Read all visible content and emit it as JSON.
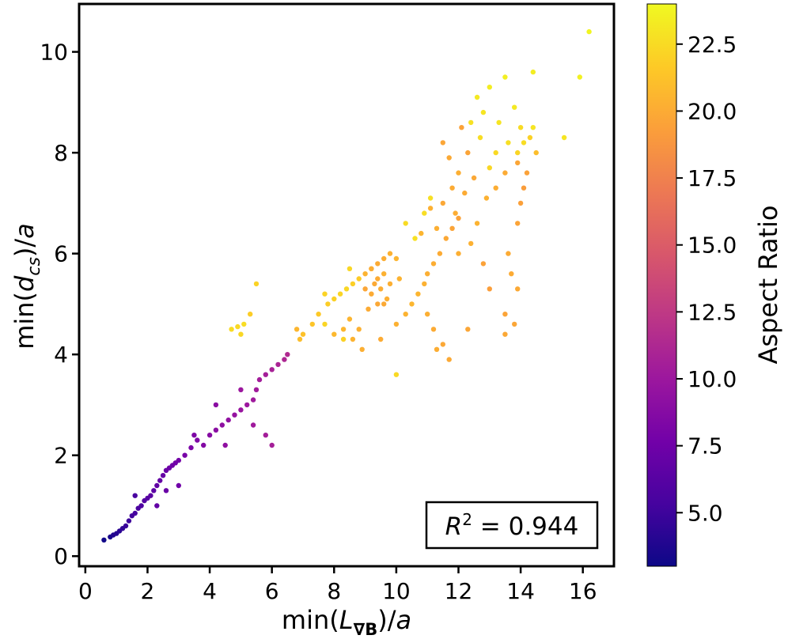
{
  "chart_data": {
    "type": "scatter",
    "title": "",
    "xlabel": "min(L_∇B)/a",
    "ylabel": "min(d_cs)/a",
    "xlabel_parts": {
      "pre": "min(",
      "var": "L",
      "sub": "∇B",
      "post": ")/",
      "tail": "a"
    },
    "ylabel_parts": {
      "pre": "min(",
      "var": "d",
      "sub": "cs",
      "post": ")/",
      "tail": "a"
    },
    "xlim": [
      -0.2,
      17.0
    ],
    "ylim": [
      -0.2,
      10.95
    ],
    "xticks": [
      0,
      2,
      4,
      6,
      8,
      10,
      12,
      14,
      16
    ],
    "yticks": [
      0,
      2,
      4,
      6,
      8,
      10
    ],
    "grid": false,
    "annotation": {
      "var": "R",
      "sup": "2",
      "text": " = 0.944",
      "location": "bottom-right"
    },
    "colorbar": {
      "label": "Aspect Ratio",
      "range": [
        3.0,
        24.0
      ],
      "ticks": [
        "5.0",
        "7.5",
        "10.0",
        "12.5",
        "15.0",
        "17.5",
        "20.0",
        "22.5"
      ],
      "colormap": [
        "#0d0887",
        "#46039f",
        "#7201a8",
        "#9c179e",
        "#bd3786",
        "#d8576b",
        "#ed7953",
        "#fb9f3a",
        "#fdca26",
        "#f0f921"
      ]
    },
    "points": [
      [
        0.6,
        0.32,
        3.2
      ],
      [
        0.8,
        0.38,
        3.5
      ],
      [
        0.9,
        0.42,
        3.8
      ],
      [
        1.0,
        0.45,
        4.0
      ],
      [
        1.1,
        0.5,
        4.2
      ],
      [
        1.2,
        0.55,
        4.5
      ],
      [
        1.3,
        0.6,
        4.8
      ],
      [
        1.4,
        0.7,
        5.0
      ],
      [
        1.5,
        0.8,
        5.2
      ],
      [
        1.6,
        0.85,
        5.4
      ],
      [
        1.7,
        0.95,
        5.6
      ],
      [
        1.8,
        1.0,
        5.8
      ],
      [
        1.9,
        1.1,
        6.0
      ],
      [
        2.0,
        1.15,
        6.2
      ],
      [
        2.1,
        1.2,
        6.4
      ],
      [
        2.2,
        1.3,
        6.5
      ],
      [
        2.3,
        1.4,
        6.7
      ],
      [
        2.4,
        1.5,
        6.9
      ],
      [
        2.5,
        1.6,
        7.0
      ],
      [
        2.6,
        1.7,
        7.2
      ],
      [
        2.7,
        1.75,
        7.4
      ],
      [
        2.8,
        1.8,
        7.5
      ],
      [
        2.9,
        1.85,
        7.6
      ],
      [
        3.0,
        1.9,
        7.8
      ],
      [
        3.2,
        2.0,
        8.0
      ],
      [
        3.4,
        2.15,
        8.2
      ],
      [
        3.6,
        2.3,
        8.4
      ],
      [
        3.5,
        2.4,
        8.3
      ],
      [
        3.8,
        2.2,
        8.6
      ],
      [
        4.0,
        2.4,
        8.8
      ],
      [
        4.2,
        2.5,
        9.0
      ],
      [
        4.4,
        2.6,
        9.2
      ],
      [
        4.6,
        2.7,
        9.4
      ],
      [
        4.8,
        2.8,
        9.6
      ],
      [
        5.0,
        2.9,
        9.8
      ],
      [
        5.2,
        3.0,
        10.0
      ],
      [
        5.4,
        3.1,
        10.2
      ],
      [
        5.5,
        3.3,
        10.3
      ],
      [
        5.6,
        3.5,
        10.4
      ],
      [
        5.8,
        3.6,
        10.6
      ],
      [
        6.0,
        3.7,
        10.8
      ],
      [
        6.2,
        3.8,
        11.0
      ],
      [
        6.4,
        3.9,
        11.2
      ],
      [
        6.5,
        4.0,
        11.4
      ],
      [
        5.0,
        3.3,
        10.0
      ],
      [
        4.5,
        2.2,
        9.3
      ],
      [
        4.2,
        3.0,
        9.0
      ],
      [
        5.8,
        2.4,
        10.5
      ],
      [
        6.0,
        2.2,
        10.6
      ],
      [
        5.4,
        2.6,
        10.2
      ],
      [
        3.0,
        1.4,
        7.6
      ],
      [
        2.6,
        1.3,
        7.2
      ],
      [
        2.3,
        1.0,
        6.8
      ],
      [
        1.6,
        1.2,
        5.5
      ],
      [
        4.7,
        4.5,
        22.5
      ],
      [
        4.9,
        4.55,
        22.4
      ],
      [
        5.1,
        4.6,
        22.6
      ],
      [
        5.0,
        4.4,
        22.3
      ],
      [
        5.3,
        4.8,
        21.8
      ],
      [
        5.5,
        5.4,
        22.1
      ],
      [
        6.9,
        4.3,
        21.0
      ],
      [
        6.8,
        4.5,
        20.6
      ],
      [
        7.0,
        4.4,
        21.2
      ],
      [
        7.3,
        4.6,
        21.4
      ],
      [
        7.5,
        4.8,
        21.6
      ],
      [
        7.8,
        5.0,
        21.8
      ],
      [
        8.0,
        5.1,
        22.0
      ],
      [
        8.2,
        5.2,
        22.2
      ],
      [
        8.4,
        5.3,
        22.3
      ],
      [
        8.6,
        5.4,
        21.9
      ],
      [
        8.8,
        5.5,
        21.7
      ],
      [
        9.0,
        5.6,
        20.4
      ],
      [
        9.2,
        5.7,
        20.2
      ],
      [
        9.4,
        5.8,
        20.0
      ],
      [
        9.6,
        5.9,
        20.1
      ],
      [
        9.8,
        6.0,
        20.3
      ],
      [
        10.0,
        5.9,
        20.5
      ],
      [
        9.2,
        5.2,
        20.0
      ],
      [
        9.3,
        5.4,
        19.9
      ],
      [
        9.5,
        5.3,
        20.1
      ],
      [
        9.7,
        5.1,
        20.2
      ],
      [
        9.4,
        5.0,
        19.8
      ],
      [
        9.1,
        4.9,
        20.0
      ],
      [
        9.6,
        5.6,
        20.3
      ],
      [
        9.0,
        5.3,
        19.7
      ],
      [
        9.8,
        5.4,
        20.2
      ],
      [
        10.1,
        5.5,
        20.4
      ],
      [
        9.4,
        5.5,
        20.0
      ],
      [
        9.2,
        5.7,
        20.1
      ],
      [
        9.6,
        5.0,
        19.9
      ],
      [
        8.8,
        4.5,
        20.3
      ],
      [
        8.5,
        4.7,
        20.5
      ],
      [
        8.3,
        4.5,
        20.6
      ],
      [
        8.0,
        4.4,
        20.7
      ],
      [
        8.6,
        4.3,
        20.4
      ],
      [
        8.9,
        4.1,
        20.2
      ],
      [
        9.5,
        4.3,
        20.0
      ],
      [
        10.0,
        4.6,
        20.3
      ],
      [
        10.3,
        4.8,
        20.4
      ],
      [
        10.5,
        5.0,
        20.6
      ],
      [
        10.7,
        5.2,
        20.5
      ],
      [
        10.9,
        5.4,
        20.3
      ],
      [
        11.0,
        5.6,
        20.2
      ],
      [
        11.2,
        5.8,
        20.1
      ],
      [
        11.4,
        6.0,
        20.0
      ],
      [
        11.6,
        6.3,
        19.8
      ],
      [
        11.8,
        6.5,
        19.6
      ],
      [
        12.0,
        6.7,
        19.5
      ],
      [
        11.5,
        7.0,
        19.8
      ],
      [
        11.8,
        7.3,
        20.0
      ],
      [
        12.0,
        7.6,
        20.2
      ],
      [
        11.7,
        7.9,
        19.9
      ],
      [
        11.5,
        8.2,
        19.7
      ],
      [
        12.1,
        8.5,
        19.5
      ],
      [
        12.3,
        8.0,
        19.6
      ],
      [
        12.5,
        7.5,
        19.8
      ],
      [
        12.2,
        7.2,
        20.0
      ],
      [
        11.9,
        6.8,
        20.1
      ],
      [
        11.3,
        6.5,
        20.2
      ],
      [
        11.1,
        6.9,
        20.3
      ],
      [
        10.8,
        6.4,
        20.5
      ],
      [
        11.0,
        4.8,
        20.2
      ],
      [
        11.2,
        4.5,
        20.0
      ],
      [
        11.5,
        4.2,
        19.8
      ],
      [
        11.7,
        3.9,
        19.9
      ],
      [
        11.3,
        4.1,
        20.1
      ],
      [
        12.3,
        4.5,
        19.7
      ],
      [
        12.8,
        5.8,
        19.5
      ],
      [
        13.0,
        5.3,
        19.3
      ],
      [
        13.5,
        4.8,
        19.6
      ],
      [
        13.8,
        4.6,
        19.7
      ],
      [
        13.5,
        4.4,
        19.8
      ],
      [
        13.9,
        5.3,
        19.9
      ],
      [
        13.7,
        5.6,
        20.0
      ],
      [
        13.6,
        6.0,
        20.0
      ],
      [
        13.9,
        6.6,
        19.6
      ],
      [
        14.0,
        7.0,
        19.4
      ],
      [
        14.1,
        7.3,
        19.2
      ],
      [
        14.2,
        7.6,
        19.5
      ],
      [
        13.9,
        7.8,
        19.7
      ],
      [
        13.5,
        7.6,
        20.0
      ],
      [
        13.2,
        7.3,
        20.1
      ],
      [
        12.9,
        7.1,
        20.3
      ],
      [
        12.6,
        6.6,
        20.4
      ],
      [
        12.4,
        6.2,
        20.3
      ],
      [
        12.0,
        6.0,
        20.2
      ],
      [
        14.5,
        8.0,
        21.0
      ],
      [
        14.3,
        8.3,
        22.0
      ],
      [
        14.0,
        8.5,
        22.5
      ],
      [
        13.6,
        8.2,
        22.7
      ],
      [
        13.3,
        8.6,
        23.0
      ],
      [
        13.8,
        8.9,
        23.2
      ],
      [
        14.4,
        8.5,
        23.0
      ],
      [
        14.1,
        8.2,
        22.6
      ],
      [
        13.9,
        8.0,
        22.2
      ],
      [
        13.5,
        9.5,
        23.5
      ],
      [
        14.4,
        9.6,
        23.4
      ],
      [
        15.4,
        8.3,
        23.0
      ],
      [
        15.9,
        9.5,
        23.6
      ],
      [
        16.2,
        10.4,
        23.8
      ],
      [
        12.6,
        9.1,
        23.2
      ],
      [
        13.0,
        9.3,
        23.4
      ],
      [
        12.8,
        8.8,
        23.0
      ],
      [
        12.4,
        8.6,
        22.8
      ],
      [
        12.7,
        8.3,
        22.6
      ],
      [
        13.2,
        8.0,
        22.4
      ],
      [
        13.0,
        7.7,
        22.3
      ],
      [
        10.6,
        6.3,
        22.8
      ],
      [
        10.3,
        6.6,
        22.5
      ],
      [
        10.9,
        6.8,
        22.6
      ],
      [
        11.1,
        7.1,
        22.7
      ],
      [
        8.3,
        4.3,
        22.0
      ],
      [
        7.7,
        4.6,
        22.2
      ],
      [
        10.0,
        3.6,
        22.4
      ],
      [
        7.7,
        5.2,
        22.1
      ],
      [
        8.5,
        5.7,
        22.3
      ]
    ]
  }
}
